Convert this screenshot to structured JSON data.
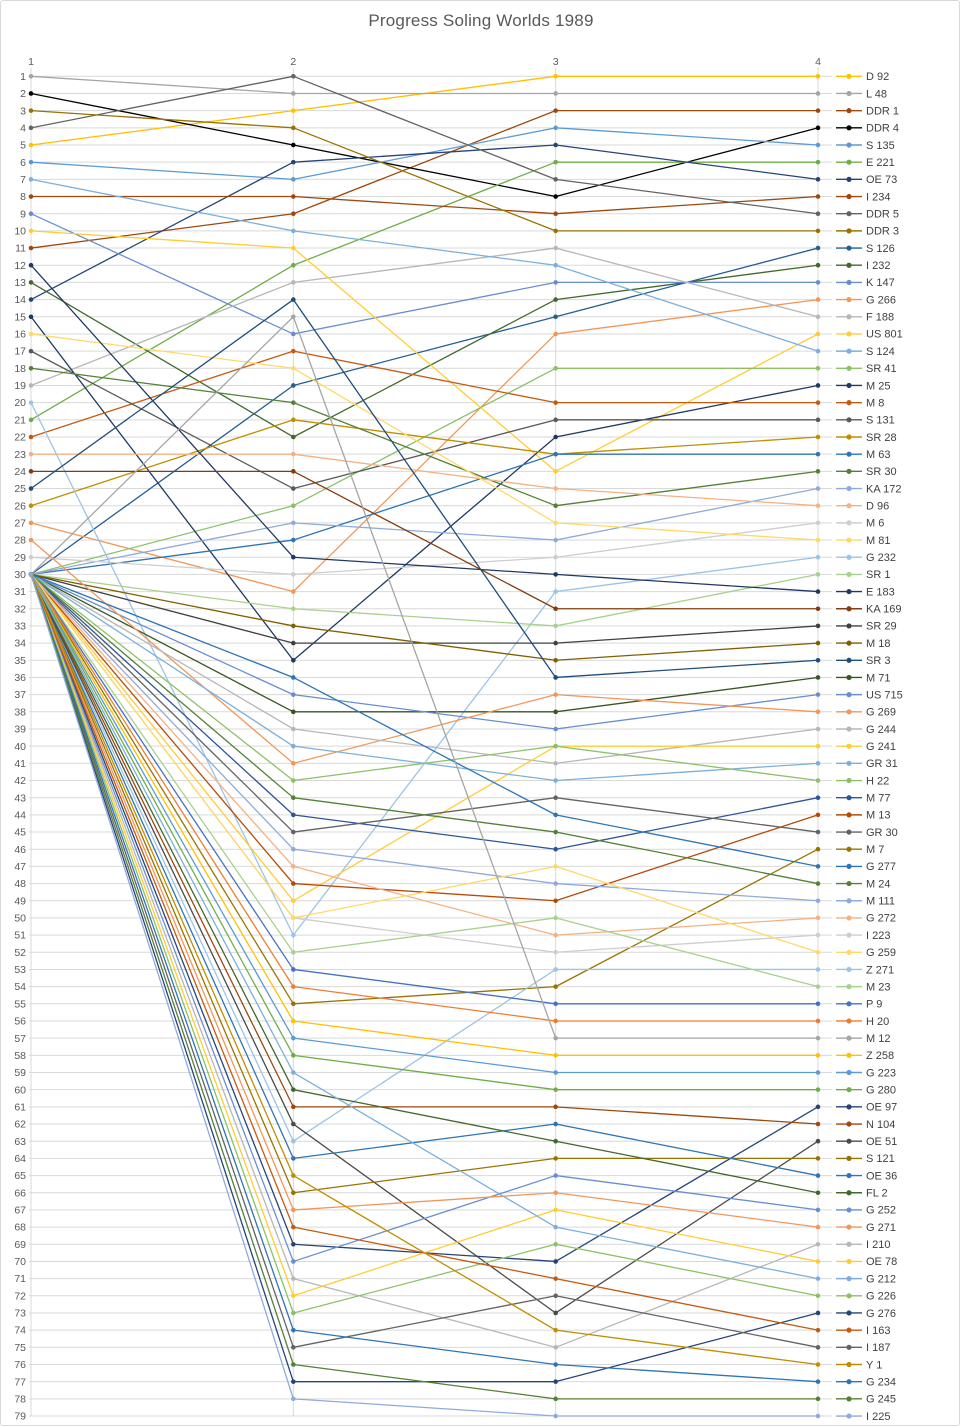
{
  "title": "Progress Soling Worlds 1989",
  "chart_data": {
    "type": "line",
    "x_categories": [
      "1",
      "2",
      "3",
      "4"
    ],
    "xlabel": "",
    "ylabel": "",
    "y_axis": {
      "min": 1,
      "max": 79,
      "step": 1,
      "reversed": true
    },
    "grid": true,
    "legend_position": "right",
    "axis_color": "#595959",
    "grid_color": "#d9d9d9",
    "legend_text_color": "#404040",
    "series": [
      {
        "name": "D 92",
        "color": "#FFC000",
        "values": [
          5,
          3,
          1,
          1
        ]
      },
      {
        "name": "L 48",
        "color": "#A5A5A5",
        "values": [
          1,
          2,
          2,
          2
        ]
      },
      {
        "name": "DDR 1",
        "color": "#9E480E",
        "values": [
          11,
          9,
          3,
          3
        ]
      },
      {
        "name": "DDR 4",
        "color": "#000000",
        "values": [
          2,
          5,
          8,
          4
        ]
      },
      {
        "name": "S 135",
        "color": "#5B9BD5",
        "values": [
          6,
          7,
          4,
          5
        ]
      },
      {
        "name": "E 221",
        "color": "#70AD47",
        "values": [
          21,
          12,
          6,
          6
        ]
      },
      {
        "name": "OE 73",
        "color": "#264478",
        "values": [
          14,
          6,
          5,
          7
        ]
      },
      {
        "name": "I 234",
        "color": "#9E480E",
        "values": [
          8,
          8,
          9,
          8
        ]
      },
      {
        "name": "DDR 5",
        "color": "#636363",
        "values": [
          4,
          1,
          7,
          9
        ]
      },
      {
        "name": "DDR 3",
        "color": "#997300",
        "values": [
          3,
          4,
          10,
          10
        ]
      },
      {
        "name": "S 126",
        "color": "#255E91",
        "values": [
          30,
          19,
          15,
          11
        ]
      },
      {
        "name": "I 232",
        "color": "#43682B",
        "values": [
          13,
          22,
          14,
          12
        ]
      },
      {
        "name": "K 147",
        "color": "#698ED0",
        "values": [
          9,
          16,
          13,
          13
        ]
      },
      {
        "name": "G 266",
        "color": "#F1975A",
        "values": [
          27,
          31,
          16,
          14
        ]
      },
      {
        "name": "F 188",
        "color": "#B7B7B7",
        "values": [
          19,
          13,
          11,
          15
        ]
      },
      {
        "name": "US 801",
        "color": "#FFCD33",
        "values": [
          10,
          11,
          24,
          16
        ]
      },
      {
        "name": "S 124",
        "color": "#7CAFDD",
        "values": [
          7,
          10,
          12,
          17
        ]
      },
      {
        "name": "SR 41",
        "color": "#8CC168",
        "values": [
          30,
          26,
          18,
          18
        ]
      },
      {
        "name": "M 25",
        "color": "#1F3864",
        "values": [
          15,
          35,
          22,
          19
        ]
      },
      {
        "name": "M 8",
        "color": "#C55A11",
        "values": [
          22,
          17,
          20,
          20
        ]
      },
      {
        "name": "S 131",
        "color": "#595959",
        "values": [
          17,
          25,
          21,
          21
        ]
      },
      {
        "name": "SR 28",
        "color": "#BF8F00",
        "values": [
          26,
          21,
          23,
          22
        ]
      },
      {
        "name": "M 63",
        "color": "#2E75B6",
        "values": [
          30,
          28,
          23,
          23
        ]
      },
      {
        "name": "SR 30",
        "color": "#538135",
        "values": [
          18,
          20,
          26,
          24
        ]
      },
      {
        "name": "KA 172",
        "color": "#8FAADC",
        "values": [
          30,
          27,
          28,
          25
        ]
      },
      {
        "name": "D 96",
        "color": "#F4B183",
        "values": [
          23,
          23,
          25,
          26
        ]
      },
      {
        "name": "M 6",
        "color": "#CFCDCD",
        "values": [
          29,
          30,
          29,
          27
        ]
      },
      {
        "name": "M 81",
        "color": "#FFD966",
        "values": [
          16,
          18,
          27,
          28
        ]
      },
      {
        "name": "G 232",
        "color": "#9DC3E6",
        "values": [
          20,
          51,
          31,
          29
        ]
      },
      {
        "name": "SR 1",
        "color": "#A9D18E",
        "values": [
          30,
          32,
          33,
          30
        ]
      },
      {
        "name": "E 183",
        "color": "#203864",
        "values": [
          12,
          29,
          30,
          31
        ]
      },
      {
        "name": "KA 169",
        "color": "#843C0C",
        "values": [
          24,
          24,
          32,
          32
        ]
      },
      {
        "name": "SR 29",
        "color": "#404040",
        "values": [
          30,
          34,
          34,
          33
        ]
      },
      {
        "name": "M 18",
        "color": "#7F6000",
        "values": [
          30,
          33,
          35,
          34
        ]
      },
      {
        "name": "SR 3",
        "color": "#1F4E79",
        "values": [
          25,
          14,
          36,
          35
        ]
      },
      {
        "name": "M 71",
        "color": "#385723",
        "values": [
          30,
          38,
          38,
          36
        ]
      },
      {
        "name": "US 715",
        "color": "#698ED0",
        "values": [
          30,
          37,
          39,
          37
        ]
      },
      {
        "name": "G 269",
        "color": "#F1975A",
        "values": [
          28,
          41,
          37,
          38
        ]
      },
      {
        "name": "G 244",
        "color": "#B7B7B7",
        "values": [
          30,
          39,
          41,
          39
        ]
      },
      {
        "name": "G 241",
        "color": "#FFCD33",
        "values": [
          30,
          49,
          40,
          40
        ]
      },
      {
        "name": "GR 31",
        "color": "#7CAFDD",
        "values": [
          30,
          40,
          42,
          41
        ]
      },
      {
        "name": "H 22",
        "color": "#8CC168",
        "values": [
          30,
          42,
          40,
          42
        ]
      },
      {
        "name": "M 77",
        "color": "#2E5597",
        "values": [
          30,
          44,
          46,
          43
        ]
      },
      {
        "name": "M 13",
        "color": "#B84A08",
        "values": [
          30,
          48,
          49,
          44
        ]
      },
      {
        "name": "GR 30",
        "color": "#636363",
        "values": [
          30,
          45,
          43,
          45
        ]
      },
      {
        "name": "M 7",
        "color": "#997300",
        "values": [
          30,
          55,
          54,
          46
        ]
      },
      {
        "name": "G 277",
        "color": "#2E75B6",
        "values": [
          30,
          36,
          44,
          47
        ]
      },
      {
        "name": "M 24",
        "color": "#538135",
        "values": [
          30,
          43,
          45,
          48
        ]
      },
      {
        "name": "M 111",
        "color": "#8FAADC",
        "values": [
          30,
          46,
          48,
          49
        ]
      },
      {
        "name": "G 272",
        "color": "#F4B183",
        "values": [
          30,
          47,
          51,
          50
        ]
      },
      {
        "name": "I 223",
        "color": "#CFCDCD",
        "values": [
          30,
          50,
          52,
          51
        ]
      },
      {
        "name": "G 259",
        "color": "#FFD966",
        "values": [
          30,
          50,
          47,
          52
        ]
      },
      {
        "name": "Z 271",
        "color": "#9DC3E6",
        "values": [
          30,
          63,
          53,
          53
        ]
      },
      {
        "name": "M 23",
        "color": "#A9D18E",
        "values": [
          30,
          52,
          50,
          54
        ]
      },
      {
        "name": "P 9",
        "color": "#4472C4",
        "values": [
          30,
          53,
          55,
          55
        ]
      },
      {
        "name": "H 20",
        "color": "#ED7D31",
        "values": [
          30,
          54,
          56,
          56
        ]
      },
      {
        "name": "M 12",
        "color": "#A5A5A5",
        "values": [
          30,
          15,
          57,
          57
        ]
      },
      {
        "name": "Z 258",
        "color": "#FFC000",
        "values": [
          30,
          56,
          58,
          58
        ]
      },
      {
        "name": "G 223",
        "color": "#5B9BD5",
        "values": [
          30,
          57,
          59,
          59
        ]
      },
      {
        "name": "G 280",
        "color": "#70AD47",
        "values": [
          30,
          58,
          60,
          60
        ]
      },
      {
        "name": "OE 97",
        "color": "#264478",
        "values": [
          30,
          69,
          70,
          61
        ]
      },
      {
        "name": "N 104",
        "color": "#9E480E",
        "values": [
          30,
          61,
          61,
          62
        ]
      },
      {
        "name": "OE 51",
        "color": "#4A4A4A",
        "values": [
          30,
          62,
          73,
          63
        ]
      },
      {
        "name": "S 121",
        "color": "#997300",
        "values": [
          30,
          66,
          64,
          64
        ]
      },
      {
        "name": "OE 36",
        "color": "#2E75B6",
        "values": [
          30,
          64,
          62,
          65
        ]
      },
      {
        "name": "FL 2",
        "color": "#43682B",
        "values": [
          30,
          60,
          63,
          66
        ]
      },
      {
        "name": "G 252",
        "color": "#698ED0",
        "values": [
          30,
          70,
          65,
          67
        ]
      },
      {
        "name": "G 271",
        "color": "#F1975A",
        "values": [
          30,
          67,
          66,
          68
        ]
      },
      {
        "name": "I 210",
        "color": "#B7B7B7",
        "values": [
          30,
          71,
          75,
          69
        ]
      },
      {
        "name": "OE 78",
        "color": "#FFCD33",
        "values": [
          30,
          72,
          67,
          70
        ]
      },
      {
        "name": "G 212",
        "color": "#7CAFDD",
        "values": [
          30,
          59,
          68,
          71
        ]
      },
      {
        "name": "G 226",
        "color": "#8CC168",
        "values": [
          30,
          73,
          69,
          72
        ]
      },
      {
        "name": "G 276",
        "color": "#264478",
        "values": [
          30,
          77,
          77,
          73
        ]
      },
      {
        "name": "I 163",
        "color": "#C55A11",
        "values": [
          30,
          68,
          71,
          74
        ]
      },
      {
        "name": "I 187",
        "color": "#636363",
        "values": [
          30,
          75,
          72,
          75
        ]
      },
      {
        "name": "Y 1",
        "color": "#BF8F00",
        "values": [
          30,
          65,
          74,
          76
        ]
      },
      {
        "name": "G 234",
        "color": "#2E75B6",
        "values": [
          30,
          74,
          76,
          77
        ]
      },
      {
        "name": "G 245",
        "color": "#538135",
        "values": [
          30,
          76,
          78,
          78
        ]
      },
      {
        "name": "I 225",
        "color": "#8FAADC",
        "values": [
          30,
          78,
          79,
          79
        ]
      }
    ]
  }
}
